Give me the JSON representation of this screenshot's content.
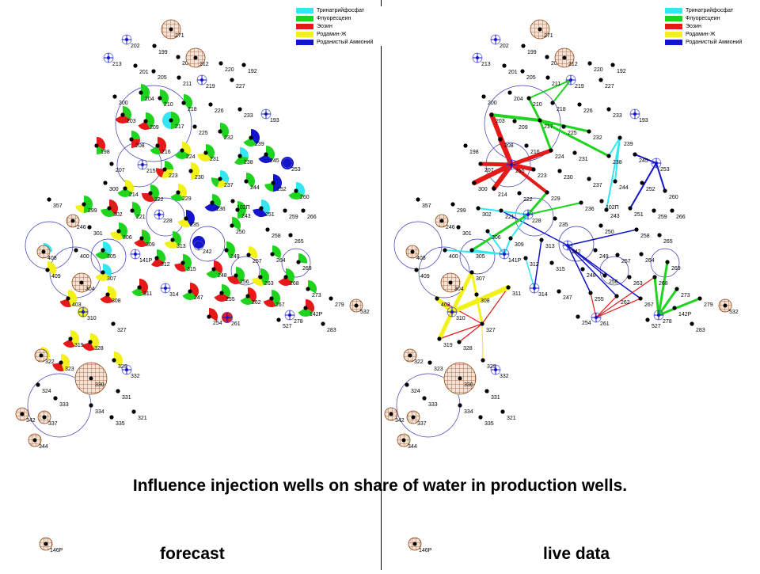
{
  "caption": "Influence injection wells on share of water in production wells.",
  "panels": {
    "left": "forecast",
    "right": "live data"
  },
  "legend": [
    {
      "label": "Тринатрийфосфат",
      "color": "#33e6f2"
    },
    {
      "label": "Флуоресцеин",
      "color": "#1ed41e"
    },
    {
      "label": "Эозин",
      "color": "#e61919"
    },
    {
      "label": "Родамин-Ж",
      "color": "#f2f21a"
    },
    {
      "label": "Роданистый Аммоний",
      "color": "#1414cc"
    }
  ],
  "wells": [
    "202",
    "271",
    "199",
    "213",
    "206",
    "212",
    "220",
    "192",
    "201",
    "205",
    "211",
    "219",
    "227",
    "200",
    "204",
    "210",
    "218",
    "226",
    "233",
    "193",
    "203",
    "209",
    "217",
    "225",
    "232",
    "239",
    "198",
    "208",
    "216",
    "224",
    "231",
    "238",
    "245",
    "253",
    "207",
    "215",
    "223",
    "230",
    "237",
    "244",
    "252",
    "260",
    "300",
    "214",
    "222",
    "229",
    "236",
    "243",
    "251",
    "259",
    "266",
    "357",
    "299",
    "302",
    "221",
    "228",
    "235",
    "250",
    "258",
    "265",
    "246",
    "301",
    "306",
    "309",
    "313",
    "242",
    "249",
    "257",
    "264",
    "269",
    "408",
    "400",
    "305",
    "141P",
    "312",
    "315",
    "248",
    "256",
    "263",
    "268",
    "409",
    "304",
    "307",
    "311",
    "314",
    "247",
    "255",
    "262",
    "267",
    "273",
    "403",
    "308",
    "279",
    "532",
    "310",
    "142P",
    "278",
    "327",
    "254",
    "261",
    "527",
    "283",
    "319",
    "328",
    "322",
    "323",
    "329",
    "332",
    "324",
    "330",
    "331",
    "333",
    "334",
    "342",
    "337",
    "321",
    "335",
    "344",
    "102П",
    "146P"
  ]
}
